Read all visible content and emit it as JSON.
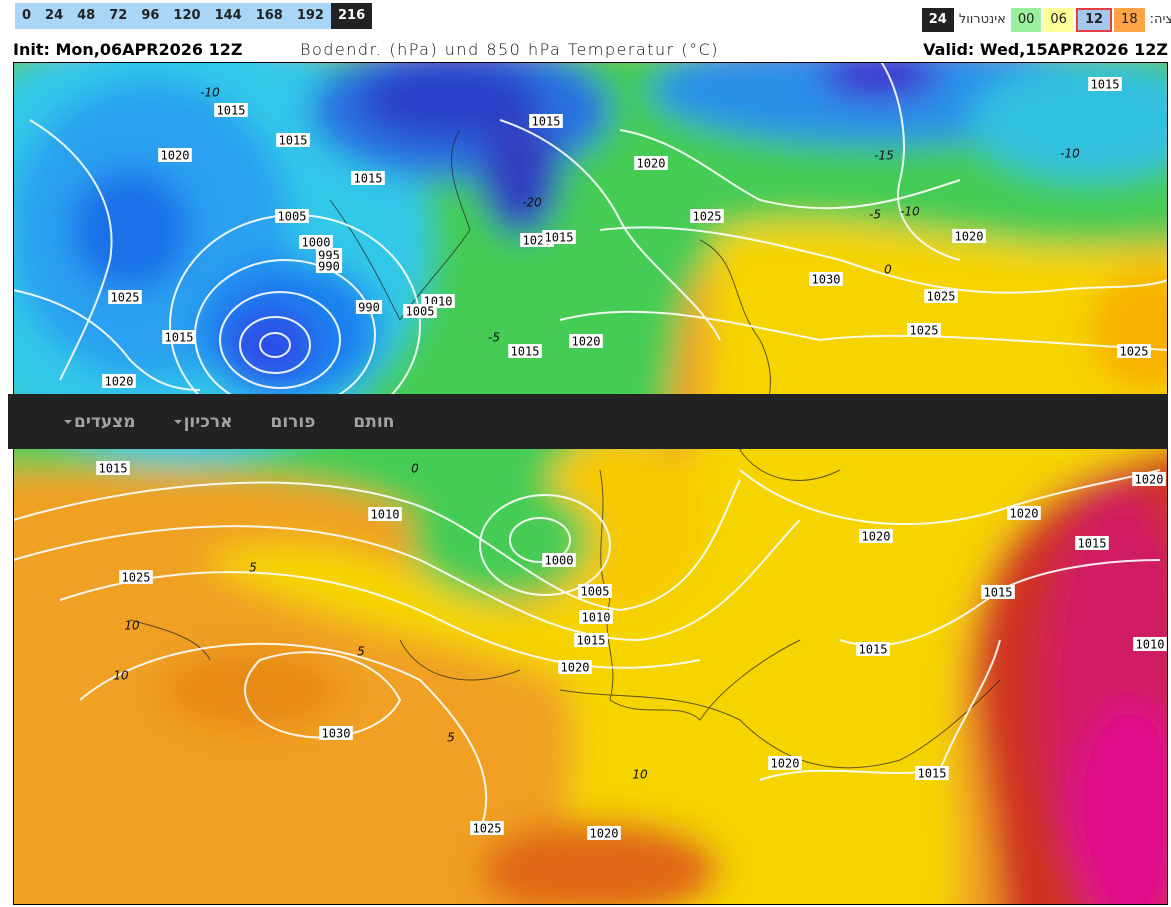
{
  "toolbar": {
    "hours": [
      0,
      24,
      48,
      72,
      96,
      120,
      144,
      168,
      192,
      216
    ],
    "run_label": "יציה:",
    "runs": [
      "18",
      "12",
      "06",
      "00"
    ],
    "interval_label": "אינטרוול",
    "interval": "24"
  },
  "map": {
    "init": "Init: Mon,06APR2026 12Z",
    "title": "Bodendr. (hPa) und 850 hPa Temperatur (°C)",
    "valid": "Valid: Wed,15APR2026 12Z",
    "isobar_labels": [
      "1015",
      "1015",
      "1020",
      "1015",
      "1005",
      "1000",
      "995",
      "990",
      "1025",
      "990",
      "1010",
      "1005",
      "1015",
      "1020",
      "1015",
      "1020",
      "1025",
      "1020",
      "1015",
      "1030",
      "1025",
      "1020",
      "1015",
      "1025",
      "1025",
      "1020",
      "1015",
      "1015",
      "1010",
      "1025",
      "1000",
      "1005",
      "1010",
      "1015",
      "1020",
      "1030",
      "1020",
      "1020",
      "1020",
      "1015",
      "1015",
      "1010",
      "1015",
      "1020",
      "1015",
      "1025",
      "1020"
    ],
    "temperature_labels": [
      "-10",
      "-15",
      "-10",
      "-5",
      "-10",
      "0",
      "10",
      "10",
      "5",
      "5",
      "5",
      "10",
      "-5",
      "0",
      "-20"
    ]
  },
  "nav": {
    "items": [
      "חותם",
      "פורום",
      "ארכיון",
      "מצעדים"
    ]
  }
}
